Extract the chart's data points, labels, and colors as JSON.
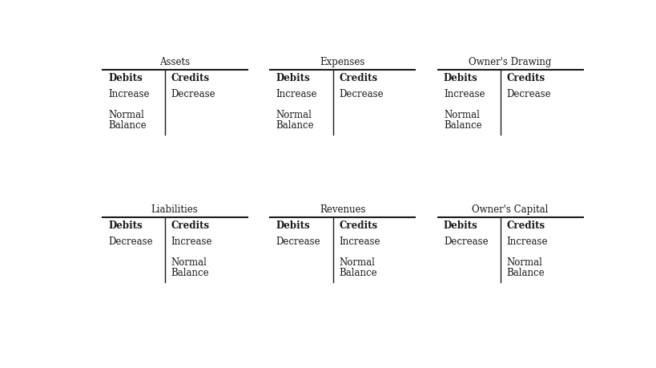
{
  "background_color": "#ffffff",
  "figsize": [
    8.19,
    4.6
  ],
  "dpi": 100,
  "panels": [
    {
      "title": "Assets",
      "col": 0,
      "row": 0,
      "debit_items": [
        "Increase",
        "Normal\nBalance"
      ],
      "credit_items": [
        "Decrease"
      ]
    },
    {
      "title": "Expenses",
      "col": 1,
      "row": 0,
      "debit_items": [
        "Increase",
        "Normal\nBalance"
      ],
      "credit_items": [
        "Decrease"
      ]
    },
    {
      "title": "Owner's Drawing",
      "col": 2,
      "row": 0,
      "debit_items": [
        "Increase",
        "Normal\nBalance"
      ],
      "credit_items": [
        "Decrease"
      ]
    },
    {
      "title": "Liabilities",
      "col": 0,
      "row": 1,
      "debit_items": [
        "Decrease"
      ],
      "credit_items": [
        "Increase",
        "Normal\nBalance"
      ]
    },
    {
      "title": "Revenues",
      "col": 1,
      "row": 1,
      "debit_items": [
        "Decrease"
      ],
      "credit_items": [
        "Increase",
        "Normal\nBalance"
      ]
    },
    {
      "title": "Owner's Capital",
      "col": 2,
      "row": 1,
      "debit_items": [
        "Decrease"
      ],
      "credit_items": [
        "Increase",
        "Normal\nBalance"
      ]
    }
  ],
  "text_color": "#1a1a1a",
  "line_color": "#1a1a1a",
  "title_fontsize": 8.5,
  "header_fontsize": 8.5,
  "body_fontsize": 8.5,
  "panel_cols": 3,
  "panel_rows": 2
}
